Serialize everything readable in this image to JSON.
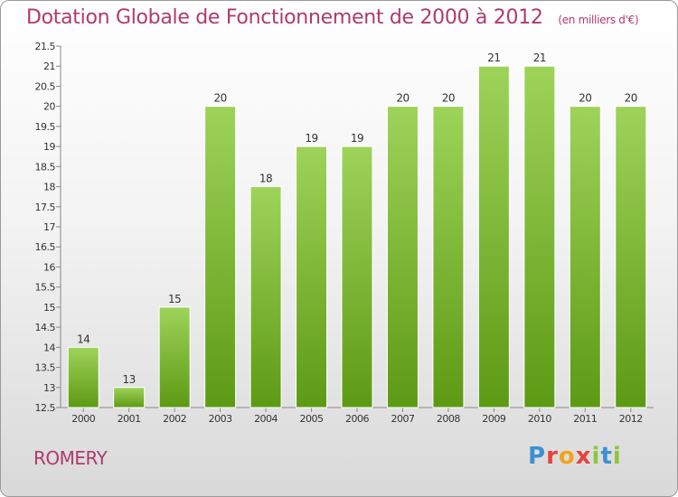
{
  "header": {
    "title": "Dotation Globale de Fonctionnement de 2000 à 2012",
    "unit": "(en milliers d'€)"
  },
  "commune": "ROMERY",
  "logo": {
    "text": "Proxiti",
    "letters": [
      {
        "char": "P",
        "color": "#3d8fd1"
      },
      {
        "char": "r",
        "color": "#e8423a"
      },
      {
        "char": "o",
        "color": "#f2a31b"
      },
      {
        "char": "x",
        "color": "#e8423a"
      },
      {
        "char": "i",
        "color": "#8dc63f"
      },
      {
        "char": "t",
        "color": "#3d8fd1"
      },
      {
        "char": "i",
        "color": "#8dc63f"
      }
    ]
  },
  "colors": {
    "bar_light": "#9ed35a",
    "bar_dark": "#5d9a14",
    "title": "#b03a6e"
  },
  "chart_data": {
    "type": "bar",
    "categories": [
      "2000",
      "2001",
      "2002",
      "2003",
      "2004",
      "2005",
      "2006",
      "2007",
      "2008",
      "2009",
      "2010",
      "2011",
      "2012"
    ],
    "values": [
      14,
      13,
      15,
      20,
      18,
      19,
      19,
      20,
      20,
      21,
      21,
      20,
      20
    ],
    "data_labels": [
      "14",
      "13",
      "15",
      "20",
      "18",
      "19",
      "19",
      "20",
      "20",
      "21",
      "21",
      "20",
      "20"
    ],
    "ylim": [
      12.5,
      21.5
    ],
    "yticks": [
      12.5,
      13,
      13.5,
      14,
      14.5,
      15,
      15.5,
      16,
      16.5,
      17,
      17.5,
      18,
      18.5,
      19,
      19.5,
      20,
      20.5,
      21,
      21.5
    ],
    "ytick_labels": [
      "12.5",
      "13",
      "13.5",
      "14",
      "14.5",
      "15",
      "15.5",
      "16",
      "16.5",
      "17",
      "17.5",
      "18",
      "18.5",
      "19",
      "19.5",
      "20",
      "20.5",
      "21",
      "21.5"
    ],
    "grid": false,
    "legend": "none"
  }
}
